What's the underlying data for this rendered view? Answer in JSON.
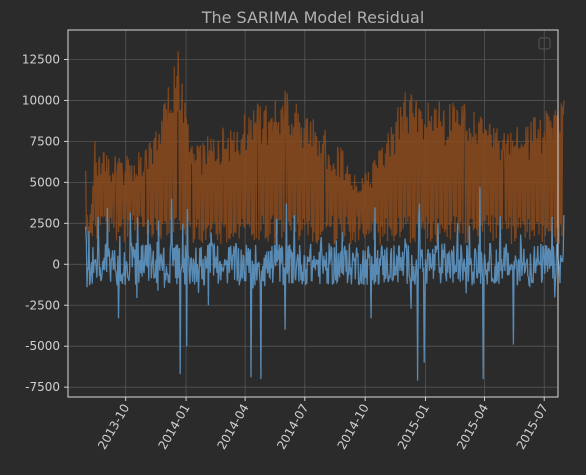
{
  "chart_data": {
    "type": "line",
    "title": "The SARIMA Model Residual",
    "xlabel": "",
    "ylabel": "",
    "x_range": [
      "2013-08-01",
      "2015-07-31"
    ],
    "xlim": [
      "2013-07-05",
      "2015-07-22"
    ],
    "ylim": [
      -8100,
      14300
    ],
    "x_ticks": [
      {
        "date": "2013-10-01",
        "label": "2013-10"
      },
      {
        "date": "2014-01-01",
        "label": "2014-01"
      },
      {
        "date": "2014-04-01",
        "label": "2014-04"
      },
      {
        "date": "2014-07-01",
        "label": "2014-07"
      },
      {
        "date": "2014-10-01",
        "label": "2014-10"
      },
      {
        "date": "2015-01-01",
        "label": "2015-01"
      },
      {
        "date": "2015-04-01",
        "label": "2015-04"
      },
      {
        "date": "2015-07-01",
        "label": "2015-07"
      }
    ],
    "y_ticks": [
      -7500,
      -5000,
      -2500,
      0,
      2500,
      5000,
      7500,
      10000,
      12500
    ],
    "grid": true,
    "legend": "top-right, empty",
    "series": [
      {
        "color": "#8b4a1c",
        "description": "daily values oscillating mostly between 1000 and 8000 with peaks near 13000 around Dec 2013",
        "keypoints": [
          {
            "date": "2013-08-01",
            "value": 5700
          },
          {
            "date": "2013-08-05",
            "value": 1200
          },
          {
            "date": "2013-08-15",
            "value": 7500
          },
          {
            "date": "2013-09-15",
            "value": 6600
          },
          {
            "date": "2013-11-01",
            "value": 7000
          },
          {
            "date": "2013-12-05",
            "value": 10800
          },
          {
            "date": "2013-12-20",
            "value": 13000
          },
          {
            "date": "2014-01-10",
            "value": 7200
          },
          {
            "date": "2014-04-20",
            "value": 9800
          },
          {
            "date": "2014-06-01",
            "value": 10600
          },
          {
            "date": "2014-08-01",
            "value": 8200
          },
          {
            "date": "2014-10-01",
            "value": 5500
          },
          {
            "date": "2014-12-01",
            "value": 10500
          },
          {
            "date": "2015-03-01",
            "value": 9800
          },
          {
            "date": "2015-05-01",
            "value": 8000
          },
          {
            "date": "2015-07-31",
            "value": 10000
          }
        ]
      },
      {
        "color": "#5b8fba",
        "description": "daily residuals oscillating around 0 between about -2500 and 2500 with spikes",
        "keypoints": [
          {
            "date": "2013-08-01",
            "value": 2300
          },
          {
            "date": "2013-08-03",
            "value": -1400
          },
          {
            "date": "2013-08-20",
            "value": 2900
          },
          {
            "date": "2013-09-20",
            "value": -3300
          },
          {
            "date": "2013-12-10",
            "value": 4000
          },
          {
            "date": "2013-12-23",
            "value": -6700
          },
          {
            "date": "2014-01-02",
            "value": -5000
          },
          {
            "date": "2014-04-10",
            "value": -6900
          },
          {
            "date": "2014-04-25",
            "value": -7000
          },
          {
            "date": "2014-06-01",
            "value": -4000
          },
          {
            "date": "2014-06-15",
            "value": 3000
          },
          {
            "date": "2014-10-10",
            "value": -3300
          },
          {
            "date": "2014-12-20",
            "value": -7100
          },
          {
            "date": "2014-12-22",
            "value": 3000
          },
          {
            "date": "2014-12-30",
            "value": -6000
          },
          {
            "date": "2015-03-25",
            "value": 4700
          },
          {
            "date": "2015-03-30",
            "value": -7000
          },
          {
            "date": "2015-05-15",
            "value": -4900
          },
          {
            "date": "2015-07-31",
            "value": 3000
          }
        ]
      }
    ]
  }
}
